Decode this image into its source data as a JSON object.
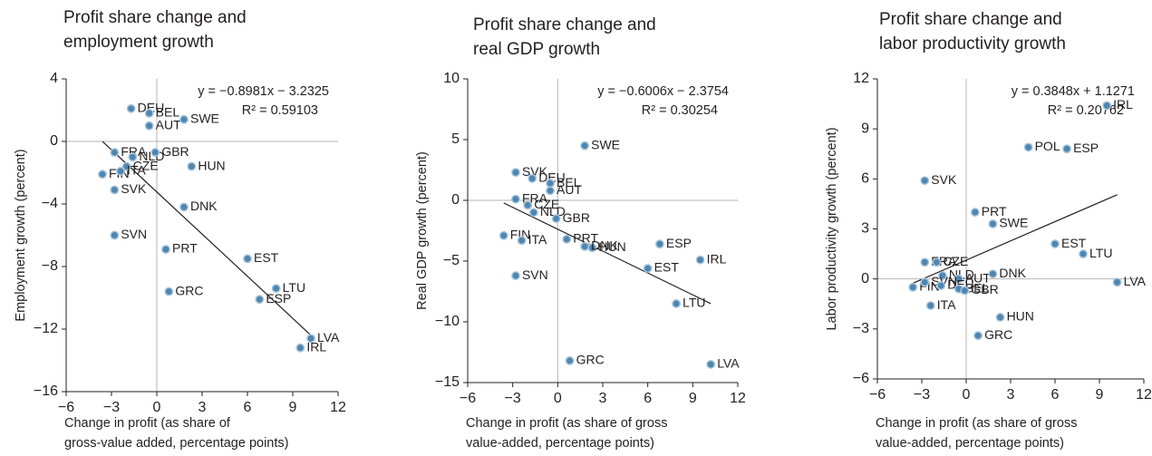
{
  "chart_data": [
    {
      "type": "scatter",
      "title": [
        "Profit share change and",
        "employment growth"
      ],
      "x_label": [
        "Change in profit (as share of",
        "gross-value added, percentage points)"
      ],
      "y_label": "Employment growth (percent)",
      "xlim": [
        -6,
        12
      ],
      "xticks": [
        {
          "value": -6,
          "label": "−6"
        },
        {
          "value": -3,
          "label": "−3"
        },
        0,
        3,
        6,
        9,
        12
      ],
      "ylim": [
        -16,
        4
      ],
      "yticks": [
        {
          "value": -16,
          "label": "−16"
        },
        {
          "value": -12,
          "label": "−12"
        },
        {
          "value": -8,
          "label": "−8"
        },
        {
          "value": -4,
          "label": "−4"
        },
        0,
        4
      ],
      "color": "#4f86b0",
      "labels": [
        "DEU",
        "BEL",
        "AUT",
        "SWE",
        "FRA",
        "NLD",
        "GBR",
        "HUN",
        "FIN",
        "CZE",
        "ITA",
        "SVK",
        "DNK",
        "SVN",
        "PRT",
        "EST",
        "GRC",
        "LTU",
        "ESP",
        "LVA",
        "IRL"
      ],
      "x": [
        -1.7,
        -0.5,
        -0.5,
        1.8,
        -2.8,
        -1.6,
        -0.1,
        2.3,
        -3.6,
        -2.0,
        -2.4,
        -2.8,
        1.8,
        -2.8,
        0.6,
        6.0,
        0.8,
        7.9,
        6.8,
        10.2,
        9.5
      ],
      "y": [
        2.1,
        1.8,
        1.0,
        1.4,
        -0.7,
        -1.0,
        -0.7,
        -1.6,
        -2.1,
        -1.6,
        -1.9,
        -3.1,
        -4.2,
        -6.0,
        -6.9,
        -7.5,
        -9.6,
        -9.4,
        -10.1,
        -12.6,
        -13.2
      ],
      "trendline": {
        "slope": -0.8981,
        "intercept": -3.2325,
        "label": "y = −0.8981x − 3.2325",
        "r2_label": "R² = 0.59103"
      }
    },
    {
      "type": "scatter",
      "title": [
        "Profit share change and",
        "real GDP growth"
      ],
      "x_label": [
        "Change in profit (as share of gross",
        "value-added, percentage points)"
      ],
      "y_label": "Real GDP growth (percent)",
      "xlim": [
        -6,
        12
      ],
      "xticks": [
        {
          "value": -6,
          "label": "−6"
        },
        {
          "value": -3,
          "label": "−3"
        },
        0,
        3,
        6,
        9,
        12
      ],
      "ylim": [
        -15,
        10
      ],
      "yticks": [
        {
          "value": -15,
          "label": "−15"
        },
        {
          "value": -10,
          "label": "−10"
        },
        {
          "value": -5,
          "label": "−5"
        },
        0,
        5,
        10
      ],
      "color": "#4f86b0",
      "labels": [
        "SWE",
        "SVK",
        "DEU",
        "BEL",
        "AUT",
        "FRA",
        "CZE",
        "NLD",
        "GBR",
        "FIN",
        "ITA",
        "PRT",
        "HUN",
        "DNK",
        "ESP",
        "EST",
        "IRL",
        "LTU",
        "LVA",
        "GRC",
        "SVN"
      ],
      "x": [
        1.8,
        -2.8,
        -1.7,
        -0.5,
        -0.5,
        -2.8,
        -2.0,
        -1.6,
        -0.1,
        -3.6,
        -2.4,
        0.6,
        2.3,
        1.8,
        6.8,
        6.0,
        9.5,
        7.9,
        10.2,
        0.8,
        -2.8
      ],
      "y": [
        4.5,
        2.3,
        1.8,
        1.4,
        0.8,
        0.1,
        -0.4,
        -1.0,
        -1.5,
        -2.9,
        -3.3,
        -3.2,
        -3.9,
        -3.8,
        -3.6,
        -5.6,
        -4.9,
        -8.5,
        -13.5,
        -13.2,
        -6.2
      ],
      "trendline": {
        "slope": -0.6006,
        "intercept": -2.3754,
        "label": "y = −0.6006x − 2.3754",
        "r2_label": "R² = 0.30254"
      }
    },
    {
      "type": "scatter",
      "title": [
        "Profit share change and",
        "labor productivity growth"
      ],
      "x_label": [
        "Change in profit (as share of gross",
        "value-added, percentage points)"
      ],
      "y_label": "Labor productivity growth (percent)",
      "xlim": [
        -6,
        12
      ],
      "xticks": [
        {
          "value": -6,
          "label": "−6"
        },
        {
          "value": -3,
          "label": "−3"
        },
        0,
        3,
        6,
        9,
        12
      ],
      "ylim": [
        -6,
        12
      ],
      "yticks": [
        {
          "value": -6,
          "label": "−6"
        },
        {
          "value": -3,
          "label": "−3"
        },
        0,
        3,
        6,
        9,
        12
      ],
      "color": "#4f86b0",
      "labels": [
        "IRL",
        "POL",
        "ESP",
        "SVK",
        "PRT",
        "SWE",
        "EST",
        "LTU",
        "FRA",
        "CZE",
        "NLD",
        "AUT",
        "DNK",
        "LVA",
        "FIN",
        "SVN",
        "DEU",
        "BEL",
        "GBR",
        "ITA",
        "HUN",
        "GRC"
      ],
      "x": [
        9.5,
        4.2,
        6.8,
        -2.8,
        0.6,
        1.8,
        6.0,
        7.9,
        -2.8,
        -2.0,
        -1.6,
        -0.5,
        1.8,
        10.2,
        -3.6,
        -2.8,
        -1.7,
        -0.5,
        -0.1,
        -2.4,
        2.3,
        0.8
      ],
      "y": [
        10.4,
        7.9,
        7.8,
        5.9,
        4.0,
        3.3,
        2.1,
        1.5,
        1.0,
        1.0,
        0.2,
        0.0,
        0.3,
        -0.2,
        -0.5,
        -0.2,
        -0.4,
        -0.6,
        -0.7,
        -1.6,
        -2.3,
        -3.4
      ],
      "trendline": {
        "slope": 0.3848,
        "intercept": 1.1271,
        "label": "y = 0.3848x + 1.1271",
        "r2_label": "R² = 0.20762"
      }
    }
  ]
}
